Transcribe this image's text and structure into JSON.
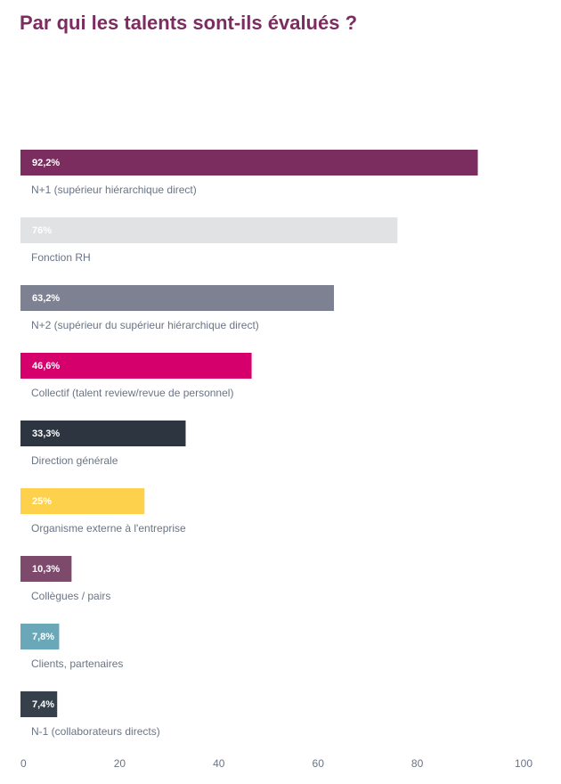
{
  "chart_data": {
    "type": "bar",
    "orientation": "horizontal",
    "title": "Par qui les talents sont-ils évalués ?",
    "xlim": [
      0,
      100
    ],
    "x_ticks": [
      "0",
      "20",
      "40",
      "60",
      "80",
      "100"
    ],
    "grid": false,
    "categories": [
      "N+1 (supérieur hiérarchique direct)",
      "Fonction RH",
      "N+2 (supérieur du supérieur hiérarchique direct)",
      "Collectif (talent review/revue de personnel)",
      "Direction générale",
      "Organisme externe à l'entreprise",
      "Collègues / pairs",
      "Clients, partenaires",
      "N-1 (collaborateurs directs)"
    ],
    "values": [
      92.2,
      76,
      63.2,
      46.6,
      33.3,
      25,
      10.3,
      7.8,
      7.4
    ],
    "value_labels": [
      "92,2%",
      "76%",
      "63,2%",
      "46,6%",
      "33,3%",
      "25%",
      "10,3%",
      "7,8%",
      "7,4%"
    ],
    "colors": [
      "#7b2d60",
      "#e1e2e4",
      "#7e8192",
      "#d6006d",
      "#2d3540",
      "#fdd14c",
      "#7d4a6c",
      "#6aa7b8",
      "#36404a"
    ]
  }
}
